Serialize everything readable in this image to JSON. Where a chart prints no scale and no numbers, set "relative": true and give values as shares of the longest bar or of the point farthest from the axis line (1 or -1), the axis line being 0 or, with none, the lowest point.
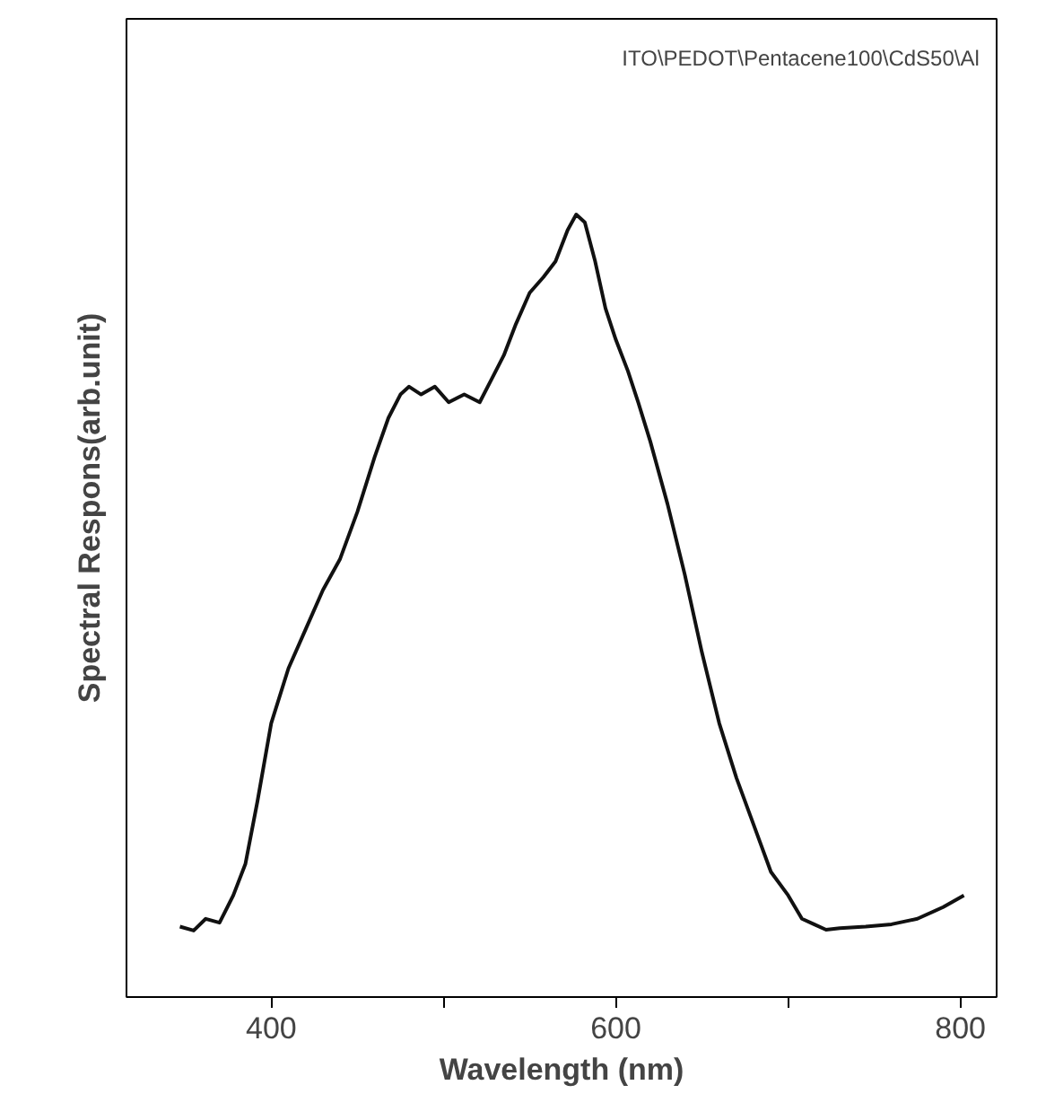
{
  "chart_data": {
    "type": "line",
    "relative": true,
    "xlabel": "Wavelength (nm)",
    "ylabel": "Spectral Respons(arb.unit)",
    "annotations": [
      "ITO\\PEDOT\\Pentacene100\\CdS50\\Al"
    ],
    "xlim": [
      316,
      821
    ],
    "xticks": [
      400,
      {
        "value": 500,
        "label": null
      },
      600,
      {
        "value": 700,
        "label": null
      },
      800
    ],
    "grid": false,
    "series": [
      {
        "color": "#111111",
        "x": [
          347,
          355,
          362,
          370,
          378,
          385,
          392,
          400,
          410,
          420,
          430,
          440,
          450,
          460,
          468,
          475,
          480,
          487,
          495,
          503,
          512,
          521,
          528,
          535,
          542,
          550,
          558,
          565,
          572,
          577,
          582,
          588,
          594,
          600,
          607,
          613,
          620,
          630,
          640,
          650,
          660,
          670,
          680,
          690,
          700,
          708,
          715,
          722,
          730,
          745,
          760,
          775,
          790,
          802
        ],
        "values": [
          0.09,
          0.085,
          0.1,
          0.095,
          0.13,
          0.17,
          0.25,
          0.35,
          0.42,
          0.47,
          0.52,
          0.56,
          0.62,
          0.69,
          0.74,
          0.77,
          0.78,
          0.77,
          0.78,
          0.76,
          0.77,
          0.76,
          0.79,
          0.82,
          0.86,
          0.9,
          0.92,
          0.94,
          0.98,
          1.0,
          0.99,
          0.94,
          0.88,
          0.84,
          0.8,
          0.76,
          0.71,
          0.63,
          0.54,
          0.44,
          0.35,
          0.28,
          0.22,
          0.16,
          0.13,
          0.1,
          0.093,
          0.086,
          0.088,
          0.09,
          0.093,
          0.1,
          0.115,
          0.13
        ]
      }
    ]
  }
}
